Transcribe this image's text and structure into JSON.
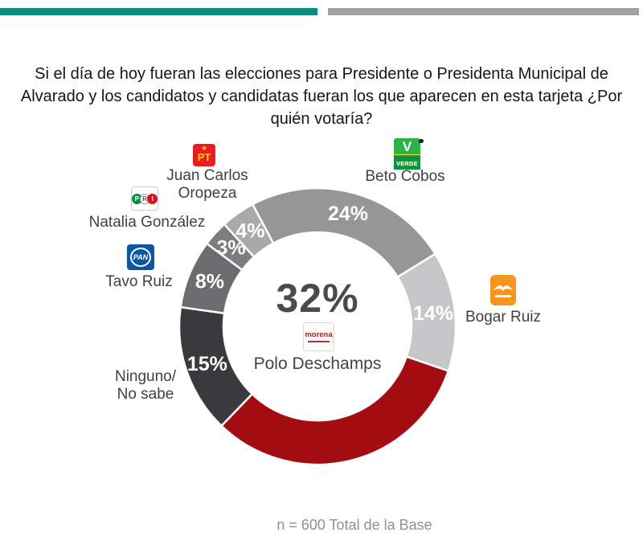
{
  "header": {
    "lines": [
      "Si el día de hoy fueran las elecciones para Presidente o Presidenta Municipal de",
      "Alvarado y los candidatos y candidatas fueran los que aparecen en esta tarjeta ¿Por",
      "quién votaría?"
    ]
  },
  "chart_data": {
    "type": "pie",
    "style": "donut",
    "title": "Si el día de hoy fueran las elecciones para Presidente o Presidenta Municipal de Alvarado y los candidatos y candidatas fueran los que aparecen en esta tarjeta ¿Por quién votaría?",
    "start_angle_deg": -28,
    "direction": "clockwise",
    "legend_position": "callouts-around-donut",
    "series": [
      {
        "candidate": "Beto Cobos",
        "value": 24,
        "color": "#969696",
        "arc_label": "24%"
      },
      {
        "candidate": "Bogar Ruiz",
        "value": 14,
        "color": "#c7c7c9",
        "arc_label": "14%"
      },
      {
        "candidate": "Polo Deschamps",
        "value": 32,
        "color": "#a30d11",
        "arc_label": ""
      },
      {
        "candidate": "Ninguno/No sabe",
        "value": 15,
        "color": "#3a3a3c",
        "arc_label": "15%"
      },
      {
        "candidate": "Tavo Ruiz",
        "value": 8,
        "color": "#6c6c6f",
        "arc_label": "8%"
      },
      {
        "candidate": "Natalia González",
        "value": 3,
        "color": "#7d7d80",
        "arc_label": "3%"
      },
      {
        "candidate": "Juan Carlos Oropeza",
        "value": 4,
        "color": "#a9a9ac",
        "arc_label": "4%"
      }
    ],
    "center_label": {
      "pct": "32%",
      "name": "Polo Deschamps",
      "party_logo_text": "morena"
    },
    "footnote": "n = 600 Total de la Base"
  },
  "callouts": {
    "pt": {
      "logo_text": "PT",
      "lines": [
        "Juan Carlos",
        "Oropeza"
      ]
    },
    "pri": {
      "logo_text": "PRI",
      "p": "P",
      "r": "R",
      "i": "I",
      "lines": [
        "Natalia González"
      ]
    },
    "pan": {
      "logo_text": "PAN",
      "lines": [
        "Tavo Ruiz"
      ]
    },
    "verde": {
      "logo_text": "VERDE",
      "v": "V",
      "lines": [
        "Beto Cobos"
      ]
    },
    "mc": {
      "lines": [
        "Bogar Ruiz"
      ]
    },
    "none": {
      "lines": [
        "Ninguno/",
        "No sabe"
      ]
    }
  },
  "center": {
    "pct": "32%",
    "name": "Polo Deschamps",
    "logo_text": "morena"
  },
  "footer": {
    "note": "n = 600 Total de la Base"
  },
  "colors": {
    "accent_teal": "#0b8a80",
    "accent_gray": "#9fa1a4",
    "morena_red": "#a30d11"
  }
}
